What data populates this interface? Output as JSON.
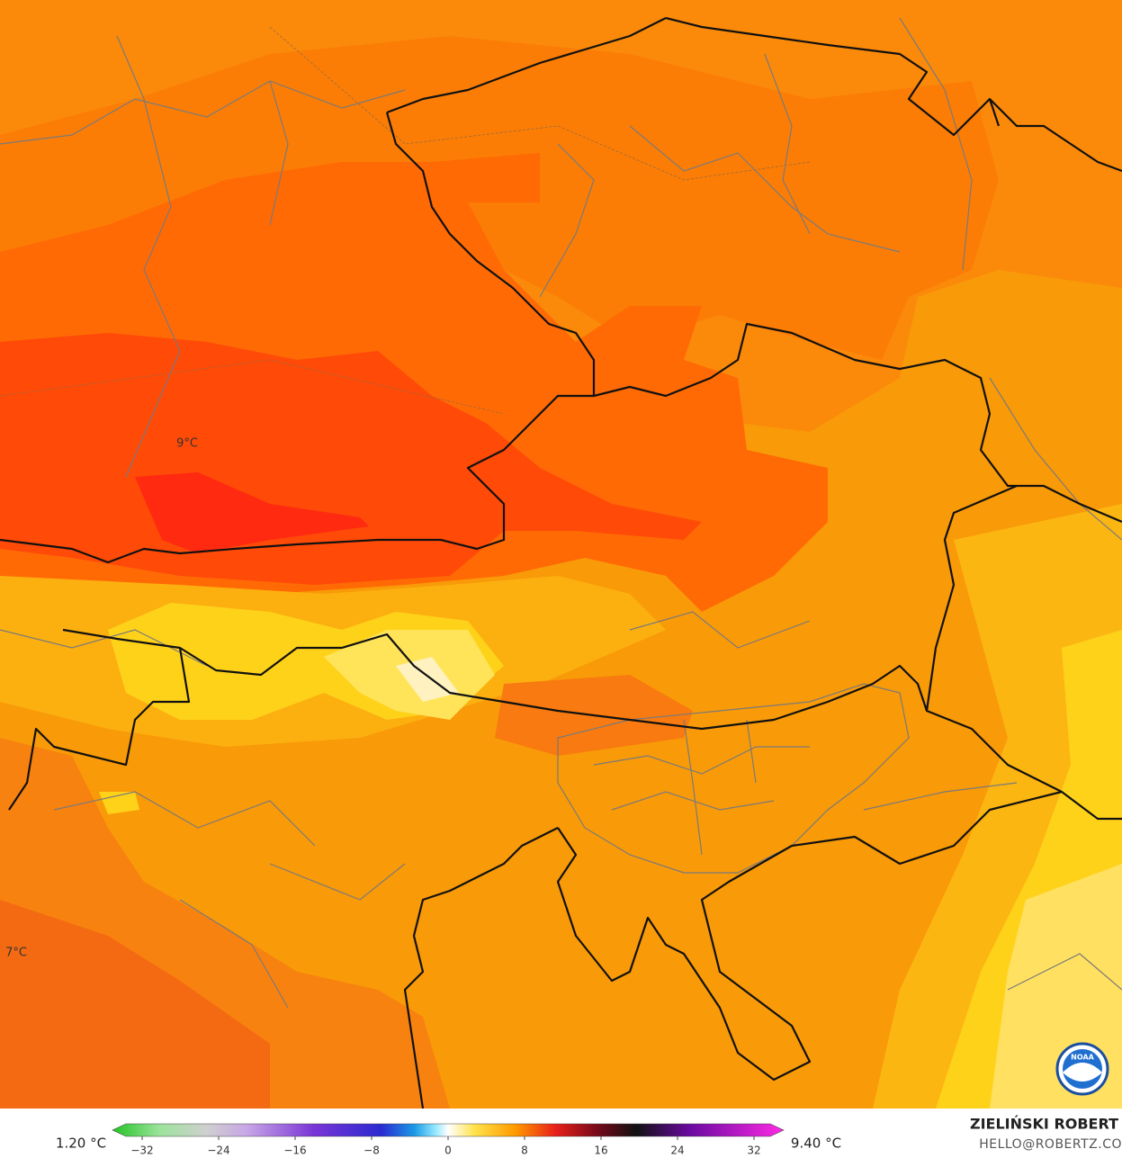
{
  "map": {
    "labels": [
      "9°C",
      "7°C"
    ]
  },
  "colorbar": {
    "min_label": "1.20 °C",
    "max_label": "9.40 °C",
    "ticks": [
      {
        "value": -32,
        "label": "−32"
      },
      {
        "value": -24,
        "label": "−24"
      },
      {
        "value": -16,
        "label": "−16"
      },
      {
        "value": -8,
        "label": "−8"
      },
      0,
      8,
      16,
      24,
      32
    ]
  },
  "credits": {
    "author": "ZIELIŃSKI ROBERT",
    "email": "HELLO@ROBERTZ.CO",
    "logo": "NOAA"
  }
}
